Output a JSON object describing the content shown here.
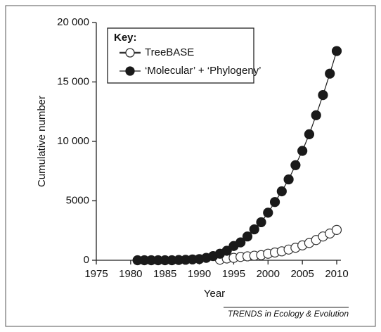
{
  "chart_data": {
    "type": "line",
    "xlabel": "Year",
    "ylabel": "Cumulative number",
    "legend_title": "Key:",
    "legend_position": "upper left",
    "footer": "TRENDS in Ecology & Evolution",
    "x": [
      1981,
      1982,
      1983,
      1984,
      1985,
      1986,
      1987,
      1988,
      1989,
      1990,
      1991,
      1992,
      1993,
      1994,
      1995,
      1996,
      1997,
      1998,
      1999,
      2000,
      2001,
      2002,
      2003,
      2004,
      2005,
      2006,
      2007,
      2008,
      2009,
      2010
    ],
    "series": [
      {
        "name": "TreeBASE",
        "color": "#333333",
        "marker": "open",
        "values": [
          null,
          null,
          null,
          null,
          null,
          null,
          null,
          null,
          null,
          null,
          null,
          null,
          50,
          150,
          200,
          280,
          330,
          380,
          430,
          550,
          650,
          750,
          900,
          1050,
          1250,
          1450,
          1700,
          2000,
          2250,
          2550
        ]
      },
      {
        "name": "‘Molecular’ + ‘Phylogeny’",
        "color": "#1a1a1a",
        "marker": "filled",
        "values": [
          0,
          0,
          0,
          0,
          0,
          0,
          20,
          40,
          70,
          100,
          200,
          350,
          550,
          800,
          1200,
          1500,
          2000,
          2600,
          3200,
          4000,
          4900,
          5800,
          6800,
          8000,
          9200,
          10600,
          12200,
          13900,
          15700,
          17600
        ]
      }
    ],
    "xlim": [
      1975,
      2010
    ],
    "xticks": [
      1975,
      1980,
      1985,
      1990,
      1995,
      2000,
      2005,
      2010
    ],
    "ylim": [
      0,
      20000
    ],
    "yticks": [
      0,
      5000,
      {
        "value": 10000,
        "label": "10 000"
      },
      {
        "value": 15000,
        "label": "15 000"
      },
      {
        "value": 20000,
        "label": "20 000"
      }
    ]
  }
}
